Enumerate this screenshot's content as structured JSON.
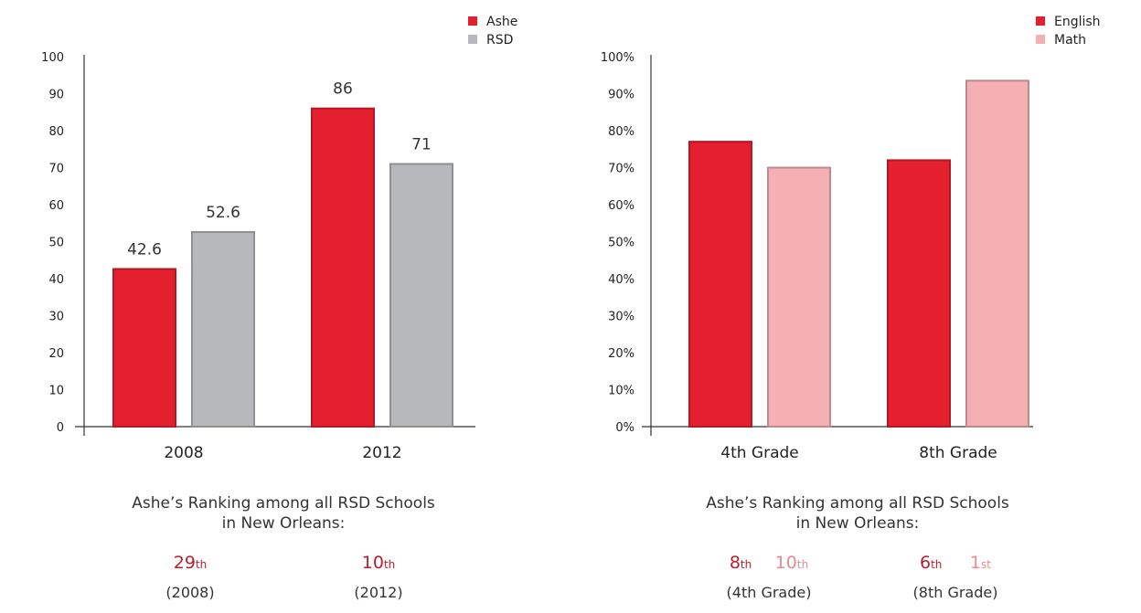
{
  "chart_data": [
    {
      "type": "bar",
      "categories": [
        "2008",
        "2012"
      ],
      "series": [
        {
          "name": "Ashe",
          "values": [
            42.6,
            86
          ],
          "labels": [
            "42.6",
            "86"
          ],
          "color": "#e4202e"
        },
        {
          "name": "RSD",
          "values": [
            52.6,
            71
          ],
          "labels": [
            "52.6",
            "71"
          ],
          "color": "#b7b8bb"
        }
      ],
      "ylim": [
        0,
        100
      ],
      "yticks": [
        "0",
        "10",
        "20",
        "30",
        "40",
        "50",
        "60",
        "70",
        "80",
        "90",
        "100"
      ],
      "legend_position": "top-right"
    },
    {
      "type": "bar",
      "categories": [
        "4th Grade",
        "8th Grade"
      ],
      "series": [
        {
          "name": "English",
          "values": [
            77,
            72
          ],
          "color": "#e4202e"
        },
        {
          "name": "Math",
          "values": [
            70,
            93.5
          ],
          "color": "#f4b0b3"
        }
      ],
      "ylim": [
        0,
        100
      ],
      "yticks": [
        "0%",
        "10%",
        "20%",
        "30%",
        "40%",
        "50%",
        "60%",
        "70%",
        "80%",
        "90%",
        "100%"
      ],
      "legend_position": "top-right"
    }
  ],
  "rankings": {
    "left": {
      "title_line1": "Ashe’s Ranking among all RSD Schools",
      "title_line2": "in New Orleans:",
      "items": [
        {
          "num": "29",
          "suffix": "th",
          "sub": "(2008)"
        },
        {
          "num": "10",
          "suffix": "th",
          "sub": "(2012)"
        }
      ]
    },
    "right": {
      "title_line1": "Ashe’s Ranking among all RSD Schools",
      "title_line2": "in New Orleans:",
      "items": [
        {
          "num": "8",
          "suffix": "th",
          "num2": "10",
          "suffix2": "th",
          "sub": "(4th Grade)"
        },
        {
          "num": "6",
          "suffix": "th",
          "num2": "1",
          "suffix2": "st",
          "sub": "(8th Grade)"
        }
      ]
    }
  }
}
